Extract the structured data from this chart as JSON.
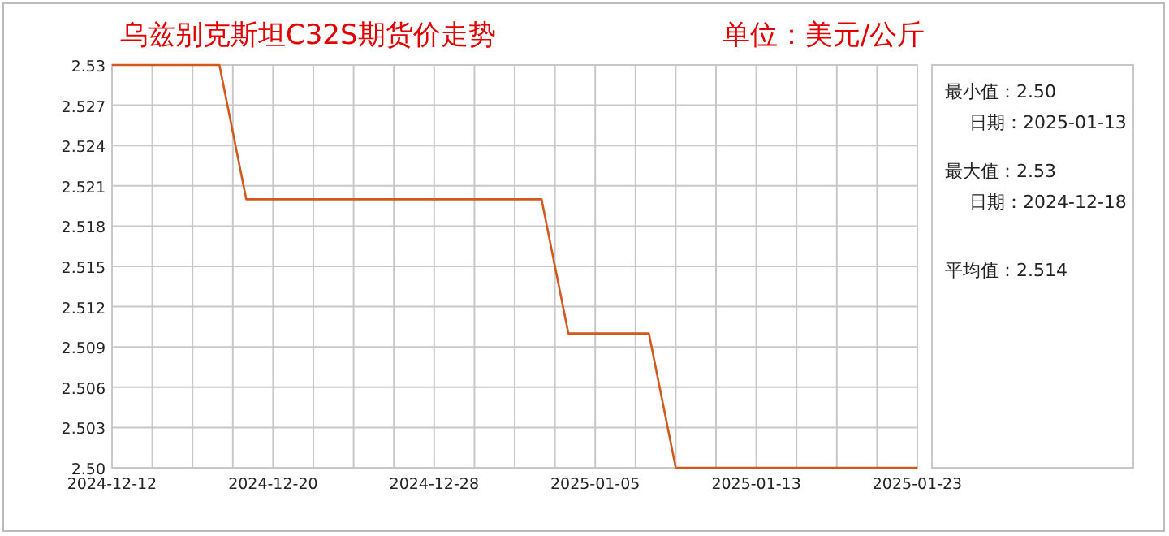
{
  "chart_data": {
    "type": "line",
    "title": "乌兹别克斯坦C32S期货价走势",
    "subtitle": "单位：美元/公斤",
    "categories": [
      "2024-12-12",
      null,
      null,
      null,
      null,
      null,
      "2024-12-20",
      null,
      null,
      null,
      null,
      null,
      "2024-12-28",
      null,
      null,
      null,
      null,
      null,
      "2025-01-05",
      null,
      null,
      null,
      null,
      null,
      "2025-01-13",
      null,
      null,
      null,
      null,
      null,
      "2025-01-23"
    ],
    "series": [
      {
        "color": "#d2581e",
        "values": [
          2.53,
          2.53,
          2.53,
          2.53,
          2.53,
          2.52,
          2.52,
          2.52,
          2.52,
          2.52,
          2.52,
          2.52,
          2.52,
          2.52,
          2.52,
          2.52,
          2.52,
          2.51,
          2.51,
          2.51,
          2.51,
          2.5,
          2.5,
          2.5,
          2.5,
          2.5,
          2.5,
          2.5,
          2.5,
          2.5,
          2.5
        ]
      }
    ],
    "ylim": [
      2.5,
      2.53
    ],
    "yticks": [
      {
        "value": 2.5,
        "label": "2.50"
      },
      2.503,
      2.506,
      2.509,
      2.512,
      2.515,
      2.518,
      2.521,
      2.524,
      2.527,
      2.53
    ],
    "grid": true,
    "annotations": [
      "最小值：2.50",
      "日期：2025-01-13",
      "最大值：2.53",
      "日期：2024-12-18",
      "平均值：2.514"
    ]
  }
}
